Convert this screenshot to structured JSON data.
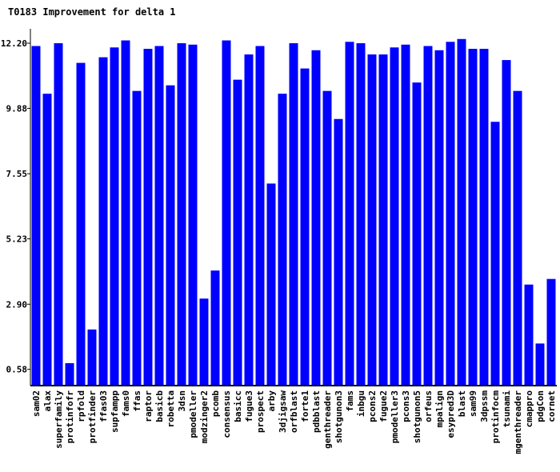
{
  "chart_data": {
    "type": "bar",
    "title": "T0183 Improvement for delta 1",
    "xlabel": "",
    "ylabel": "",
    "ylim": [
      0.0,
      12.6
    ],
    "yticks": [
      "0.58",
      "2.90",
      "5.23",
      "7.55",
      "9.88",
      "12.20"
    ],
    "bar_color": "#0000ff",
    "grid": false,
    "categories": [
      "sam02",
      "alax",
      "superfamily",
      "protinfofr",
      "rpfold",
      "protfinder",
      "ffas03",
      "supfampp",
      "fams0",
      "ffas",
      "raptor",
      "basicb",
      "robetta",
      "3dsn",
      "pmodeller",
      "modzinger2",
      "pcomb",
      "consensus",
      "basicc",
      "fugue3",
      "prospect",
      "arby",
      "3djigsaw",
      "orfblast",
      "forte1",
      "pdbblast",
      "genthreader",
      "shotgunon3",
      "fams",
      "inbgu",
      "pcons2",
      "fugue2",
      "pmodeller3",
      "pcons3",
      "shotgunon5",
      "orfeus",
      "mpalign",
      "esypred3D",
      "blast",
      "sam99",
      "3dpssm",
      "protinfocm",
      "tsunami",
      "mgenthreader",
      "cmappro",
      "pdgCon",
      "cornet"
    ],
    "values": [
      12.1,
      10.4,
      12.2,
      0.8,
      11.5,
      2.0,
      11.7,
      12.05,
      12.3,
      10.5,
      12.0,
      12.1,
      10.7,
      12.2,
      12.15,
      3.1,
      4.1,
      12.3,
      10.9,
      11.8,
      12.1,
      7.2,
      10.4,
      12.2,
      11.3,
      11.95,
      10.5,
      9.5,
      12.25,
      12.2,
      11.8,
      11.8,
      12.05,
      12.15,
      10.8,
      12.1,
      11.95,
      12.25,
      12.35,
      12.0,
      12.0,
      9.4,
      11.6,
      10.5,
      3.6,
      1.5,
      3.8
    ]
  }
}
